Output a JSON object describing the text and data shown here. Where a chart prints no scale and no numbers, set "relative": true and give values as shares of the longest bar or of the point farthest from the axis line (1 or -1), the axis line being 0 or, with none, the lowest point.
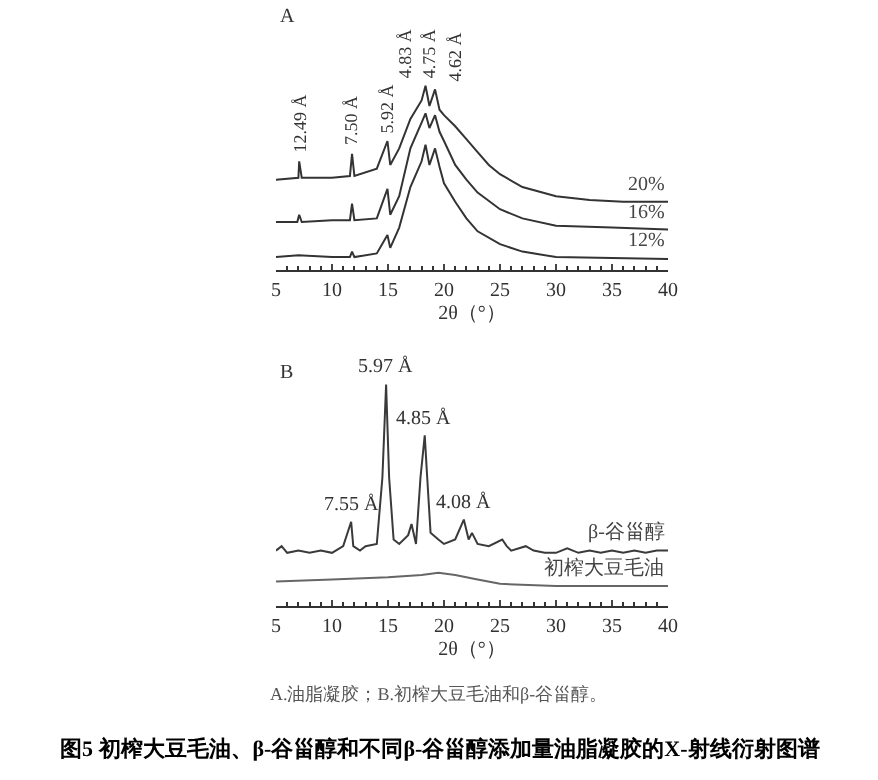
{
  "chart_data": [
    {
      "type": "line",
      "title": "A",
      "xlabel": "2θ（°）",
      "relative": true,
      "xlim": [
        5,
        40
      ],
      "xticks": [
        5,
        10,
        15,
        20,
        25,
        30,
        35,
        40
      ],
      "tick_labels": "x",
      "legend": false,
      "series": [
        {
          "name": "20%",
          "color": "#333333",
          "x": [
            5,
            7,
            7.07,
            7.3,
            10,
            11.6,
            11.79,
            12,
            14,
            14.95,
            15.2,
            16,
            17,
            18,
            18.35,
            18.7,
            19.2,
            19.6,
            20,
            21,
            22,
            23,
            24,
            25,
            27,
            30,
            33,
            36,
            40
          ],
          "values": [
            0.49,
            0.5,
            0.59,
            0.5,
            0.5,
            0.51,
            0.63,
            0.51,
            0.55,
            0.7,
            0.57,
            0.66,
            0.82,
            0.92,
            1.0,
            0.89,
            0.98,
            0.87,
            0.84,
            0.78,
            0.71,
            0.64,
            0.57,
            0.52,
            0.45,
            0.4,
            0.38,
            0.37,
            0.37
          ]
        },
        {
          "name": "16%",
          "color": "#333333",
          "x": [
            5,
            6.9,
            7.07,
            7.3,
            10,
            11.6,
            11.79,
            12,
            14,
            14.95,
            15.2,
            16,
            17,
            18,
            18.35,
            18.7,
            19.2,
            19.6,
            20,
            21,
            22,
            23,
            25,
            27,
            30,
            35,
            40
          ],
          "values": [
            0.26,
            0.26,
            0.3,
            0.26,
            0.27,
            0.27,
            0.36,
            0.27,
            0.28,
            0.44,
            0.3,
            0.4,
            0.66,
            0.8,
            0.85,
            0.77,
            0.84,
            0.75,
            0.7,
            0.57,
            0.49,
            0.42,
            0.33,
            0.28,
            0.24,
            0.23,
            0.22
          ]
        },
        {
          "name": "12%",
          "color": "#333333",
          "x": [
            5,
            7,
            10,
            11.6,
            11.79,
            12,
            14,
            14.95,
            15.2,
            16,
            17,
            18,
            18.35,
            18.7,
            19.2,
            19.6,
            20,
            21,
            22,
            23,
            25,
            27,
            30,
            40
          ],
          "values": [
            0.07,
            0.08,
            0.07,
            0.07,
            0.1,
            0.07,
            0.09,
            0.19,
            0.12,
            0.23,
            0.45,
            0.59,
            0.68,
            0.57,
            0.66,
            0.56,
            0.47,
            0.37,
            0.28,
            0.21,
            0.14,
            0.1,
            0.07,
            0.06
          ]
        }
      ],
      "annotations": [
        {
          "text": "12.49 Å",
          "x": 7.07,
          "y": 0.59
        },
        {
          "text": "7.50 Å",
          "x": 11.79,
          "y": 0.63
        },
        {
          "text": "5.92 Å",
          "x": 14.95,
          "y": 0.7
        },
        {
          "text": "4.83 Å",
          "x": 18.35,
          "y": 1.0
        },
        {
          "text": "4.75 Å",
          "x": 18.7,
          "y": 1.0
        },
        {
          "text": "4.62 Å",
          "x": 19.2,
          "y": 0.98
        }
      ]
    },
    {
      "type": "line",
      "title": "B",
      "xlabel": "2θ（°）",
      "relative": true,
      "xlim": [
        5,
        40
      ],
      "xticks": [
        5,
        10,
        15,
        20,
        25,
        30,
        35,
        40
      ],
      "tick_labels": "x",
      "legend": false,
      "series": [
        {
          "name": "β-谷甾醇",
          "color": "#3a3a3a",
          "x": [
            5,
            5.5,
            6,
            7,
            8,
            9,
            10,
            11,
            11.71,
            11.9,
            12.5,
            13,
            14,
            14.5,
            14.83,
            15.1,
            15.5,
            16,
            16.8,
            17.1,
            17.5,
            17.9,
            18.28,
            18.5,
            18.8,
            19.5,
            20,
            21,
            21.77,
            22.2,
            22.5,
            23,
            24,
            25.2,
            25.6,
            26,
            27.3,
            28,
            29,
            30,
            31,
            32,
            33,
            34,
            35,
            36,
            37,
            38,
            39,
            40
          ],
          "values": [
            0.25,
            0.27,
            0.24,
            0.25,
            0.24,
            0.25,
            0.24,
            0.27,
            0.38,
            0.27,
            0.25,
            0.27,
            0.28,
            0.58,
            1.0,
            0.58,
            0.3,
            0.28,
            0.32,
            0.37,
            0.28,
            0.58,
            0.77,
            0.58,
            0.33,
            0.3,
            0.28,
            0.3,
            0.39,
            0.3,
            0.33,
            0.28,
            0.27,
            0.3,
            0.27,
            0.25,
            0.27,
            0.25,
            0.24,
            0.24,
            0.26,
            0.24,
            0.25,
            0.24,
            0.25,
            0.24,
            0.25,
            0.24,
            0.25,
            0.25
          ]
        },
        {
          "name": "初榨大豆毛油",
          "color": "#666666",
          "x": [
            5,
            10,
            15,
            18,
            19.5,
            21,
            23,
            25,
            30,
            40
          ],
          "values": [
            0.11,
            0.12,
            0.13,
            0.14,
            0.15,
            0.14,
            0.12,
            0.1,
            0.09,
            0.09
          ]
        }
      ],
      "annotations": [
        {
          "text": "7.55 Å",
          "x": 11.71,
          "y": 0.38
        },
        {
          "text": "5.97 Å",
          "x": 14.83,
          "y": 1.0
        },
        {
          "text": "4.85 Å",
          "x": 18.28,
          "y": 0.77
        },
        {
          "text": "4.08 Å",
          "x": 21.77,
          "y": 0.39
        },
        "A.油脂凝胶；B.初榨大豆毛油和β-谷甾醇。",
        "图5 初榨大豆毛油、β-谷甾醇和不同β-谷甾醇添加量油脂凝胶的X-射线衍射图谱"
      ]
    }
  ]
}
